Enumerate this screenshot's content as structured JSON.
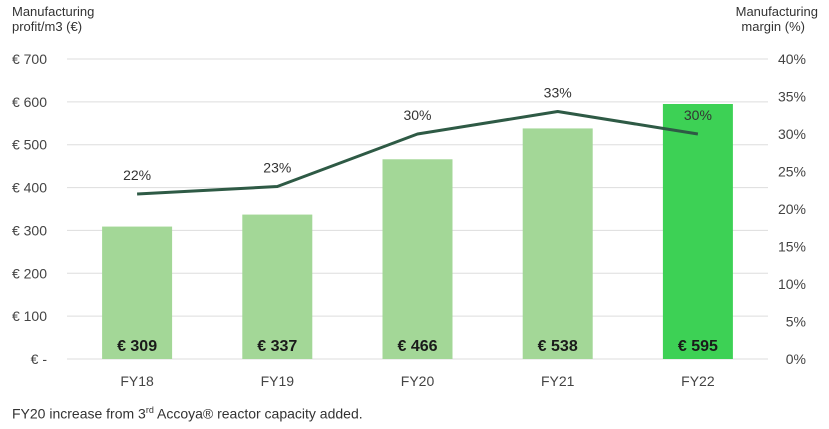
{
  "chart_data": {
    "type": "bar",
    "categories": [
      "FY18",
      "FY19",
      "FY20",
      "FY21",
      "FY22"
    ],
    "series": [
      {
        "values": [
          309,
          337,
          466,
          538,
          595
        ],
        "value_labels": [
          "€ 309",
          "€ 337",
          "€ 466",
          "€ 538",
          "€ 595"
        ],
        "colors": [
          "#a3d797",
          "#a3d797",
          "#a3d797",
          "#a3d797",
          "#3dd155"
        ],
        "axis": "left"
      },
      {
        "type": "line",
        "values": [
          22,
          23,
          30,
          33,
          30
        ],
        "value_labels": [
          "22%",
          "23%",
          "30%",
          "33%",
          "30%"
        ],
        "color": "#2e5a45",
        "axis": "right"
      }
    ],
    "ylabel_left": [
      "Manufacturing",
      "profit/m3 (€)"
    ],
    "ylabel_right": [
      "Manufacturing",
      "margin (%)"
    ],
    "ylim_left": [
      0,
      700
    ],
    "ylim_right": [
      0,
      40
    ],
    "left_ticks": [
      "€ -",
      "€ 100",
      "€ 200",
      "€ 300",
      "€ 400",
      "€ 500",
      "€ 600",
      "€ 700"
    ],
    "right_ticks": [
      "0%",
      "5%",
      "10%",
      "15%",
      "20%",
      "25%",
      "30%",
      "35%",
      "40%"
    ],
    "grid": true,
    "gridline_color": "#dddddd"
  },
  "footnote": {
    "before": "FY20 increase from 3",
    "sup": "rd",
    "after": " Accoya® reactor capacity added."
  }
}
